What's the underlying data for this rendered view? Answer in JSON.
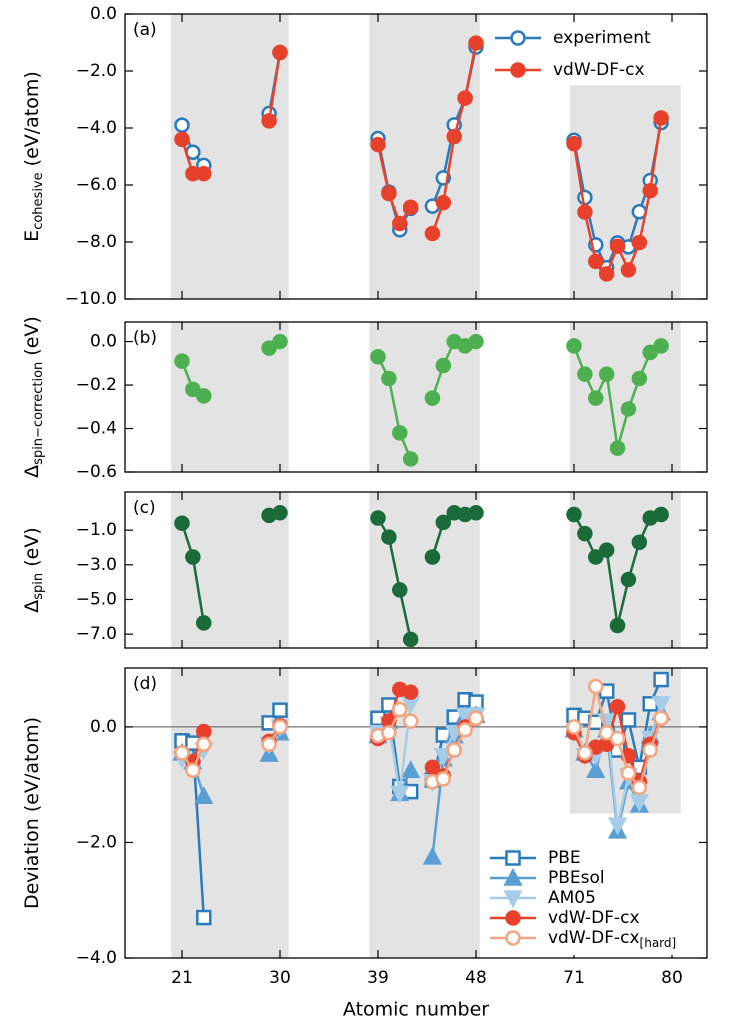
{
  "chart_data": [
    {
      "type": "line",
      "label": "(a)",
      "ylabel": {
        "main": "E",
        "sub": "cohesive",
        "unit": " (eV/atom)"
      },
      "x": [
        21,
        22,
        23,
        29,
        30,
        39,
        40,
        41,
        42,
        44,
        45,
        46,
        47,
        48,
        71,
        72,
        73,
        74,
        75,
        76,
        77,
        78,
        79
      ],
      "series": [
        {
          "name": "experiment",
          "color": "#2b7bba",
          "marker": "circle-open",
          "values": [
            -3.9,
            -4.85,
            -5.31,
            -3.49,
            -1.35,
            -4.37,
            -6.25,
            -7.57,
            -6.82,
            -6.74,
            -5.75,
            -3.89,
            -2.95,
            -1.16,
            -4.43,
            -6.44,
            -8.1,
            -8.9,
            -8.03,
            -8.17,
            -6.94,
            -5.84,
            -3.81
          ]
        },
        {
          "name": "vdW-DF-cx",
          "color": "#e8412b",
          "marker": "circle",
          "values": [
            -4.4,
            -5.6,
            -5.6,
            -3.75,
            -1.35,
            -4.58,
            -6.3,
            -7.35,
            -6.78,
            -7.7,
            -6.62,
            -4.3,
            -2.95,
            -1.02,
            -4.55,
            -6.95,
            -8.68,
            -9.12,
            -8.15,
            -8.98,
            -8.02,
            -6.2,
            -3.65
          ]
        }
      ],
      "xlim": [
        15.8,
        83.2
      ],
      "xticks": [
        21,
        30,
        39,
        48,
        71,
        80
      ],
      "ylim": [
        -10,
        0
      ],
      "yticks": [
        {
          "value": 0,
          "label": "0.0"
        },
        {
          "value": -2,
          "label": "−2.0"
        },
        {
          "value": -4,
          "label": "−4.0"
        },
        {
          "value": -6,
          "label": "−6.0"
        },
        {
          "value": -8,
          "label": "−8.0"
        },
        {
          "value": -10,
          "label": "−10.0"
        }
      ],
      "bands": [
        {
          "x": [
            20,
            30.8
          ]
        },
        {
          "x": [
            38.2,
            48.9
          ]
        },
        {
          "x": [
            70,
            80.8
          ],
          "y": [
            -10,
            -2.5
          ]
        }
      ],
      "legend": "upper right"
    },
    {
      "type": "line",
      "label": "(b)",
      "ylabel": {
        "main": "Δ",
        "sub": "spin−correction",
        "unit": " (eV)"
      },
      "x": [
        21,
        22,
        23,
        29,
        30,
        39,
        40,
        41,
        42,
        44,
        45,
        46,
        47,
        48,
        71,
        72,
        73,
        74,
        75,
        76,
        77,
        78,
        79
      ],
      "series": [
        {
          "color": "#4caf50",
          "marker": "circle",
          "values": [
            -0.09,
            -0.22,
            -0.25,
            -0.03,
            0.0,
            -0.07,
            -0.17,
            -0.42,
            -0.54,
            -0.26,
            -0.11,
            0.0,
            -0.02,
            0.0,
            -0.02,
            -0.15,
            -0.26,
            -0.15,
            -0.49,
            -0.31,
            -0.17,
            -0.05,
            -0.02
          ]
        }
      ],
      "xlim": [
        15.8,
        83.2
      ],
      "xticks": [
        21,
        30,
        39,
        48,
        71,
        80
      ],
      "ylim": [
        -0.6,
        0.09
      ],
      "yticks": [
        {
          "value": 0,
          "label": "0.0"
        },
        {
          "value": -0.2,
          "label": "−0.2"
        },
        {
          "value": -0.4,
          "label": "−0.4"
        },
        {
          "value": -0.6,
          "label": "−0.6"
        }
      ],
      "bands": [
        {
          "x": [
            20,
            30.8
          ]
        },
        {
          "x": [
            38.2,
            48.9
          ]
        },
        {
          "x": [
            70,
            80.8
          ]
        }
      ]
    },
    {
      "type": "line",
      "label": "(c)",
      "ylabel": {
        "main": "Δ",
        "sub": "spin",
        "unit": " (eV)"
      },
      "x": [
        21,
        22,
        23,
        29,
        30,
        39,
        40,
        41,
        42,
        44,
        45,
        46,
        47,
        48,
        71,
        72,
        73,
        74,
        75,
        76,
        77,
        78,
        79
      ],
      "series": [
        {
          "color": "#1b6b3a",
          "marker": "circle",
          "values": [
            -0.6,
            -2.55,
            -6.35,
            -0.15,
            0.0,
            -0.3,
            -1.4,
            -4.45,
            -7.3,
            -2.55,
            -0.55,
            0.0,
            -0.1,
            0.0,
            -0.1,
            -1.2,
            -2.55,
            -2.15,
            -6.5,
            -3.85,
            -1.7,
            -0.3,
            -0.1
          ]
        }
      ],
      "xlim": [
        15.8,
        83.2
      ],
      "xticks": [
        21,
        30,
        39,
        48,
        71,
        80
      ],
      "ylim": [
        -7.8,
        1.2
      ],
      "yticks": [
        {
          "value": -1,
          "label": "−1.0"
        },
        {
          "value": -3,
          "label": "−3.0"
        },
        {
          "value": -5,
          "label": "−5.0"
        },
        {
          "value": -7,
          "label": "−7.0"
        }
      ],
      "bands": [
        {
          "x": [
            20,
            30.8
          ]
        },
        {
          "x": [
            38.2,
            48.9
          ]
        },
        {
          "x": [
            70,
            80.8
          ]
        }
      ]
    },
    {
      "type": "line",
      "label": "(d)",
      "ylabel": {
        "main": "Deviation (eV/atom)"
      },
      "xlabel": "Atomic number",
      "x": [
        21,
        22,
        23,
        29,
        30,
        39,
        40,
        41,
        42,
        44,
        45,
        46,
        47,
        48,
        71,
        72,
        73,
        74,
        75,
        76,
        77,
        78,
        79
      ],
      "series": [
        {
          "name": "PBE",
          "color": "#2b7bba",
          "marker": "square-open",
          "values": [
            -0.24,
            -0.28,
            -3.3,
            0.07,
            0.29,
            0.15,
            0.38,
            -1.03,
            -1.12,
            -0.92,
            -0.14,
            0.17,
            0.47,
            0.43,
            0.2,
            0.15,
            0.08,
            0.62,
            -0.4,
            0.12,
            -0.7,
            0.4,
            0.82
          ]
        },
        {
          "name": "PBEsol",
          "color": "#5a9fd4",
          "marker": "triangle-up",
          "values": [
            -0.45,
            -0.6,
            -1.2,
            -0.47,
            -0.1,
            -0.15,
            0.1,
            -1.15,
            -0.75,
            -2.25,
            -0.55,
            -0.15,
            0.2,
            0.2,
            -0.05,
            -0.45,
            -0.75,
            -0.05,
            -1.8,
            -0.95,
            -1.35,
            -0.15,
            0.25
          ]
        },
        {
          "name": "AM05",
          "color": "#a6cde8",
          "marker": "triangle-down",
          "values": [
            -0.55,
            -0.7,
            -0.4,
            -0.3,
            0.0,
            -0.1,
            0.05,
            -1.15,
            0.4,
            -0.95,
            -0.5,
            -0.1,
            0.2,
            0.2,
            -0.1,
            -0.5,
            -0.5,
            0.1,
            -1.7,
            -0.85,
            -1.3,
            -0.2,
            0.4
          ]
        },
        {
          "name": "vdW-DF-cx",
          "color": "#e8412b",
          "marker": "circle",
          "values": [
            -0.45,
            -0.6,
            -0.08,
            -0.25,
            0.02,
            -0.2,
            0.1,
            0.65,
            0.6,
            -0.7,
            -0.85,
            -0.4,
            0.0,
            0.15,
            -0.1,
            -0.5,
            -0.35,
            -0.3,
            0.35,
            -0.5,
            -0.95,
            -0.3,
            0.15
          ]
        },
        {
          "name": "vdW-DF-cx",
          "name_sub": "[hard]",
          "color": "#f4a582",
          "marker": "circle-open",
          "values": [
            -0.45,
            -0.75,
            -0.3,
            -0.3,
            0.0,
            -0.15,
            -0.1,
            0.3,
            0.1,
            -0.95,
            -0.9,
            -0.4,
            -0.05,
            0.15,
            0.0,
            -0.45,
            0.7,
            -0.1,
            -0.2,
            -0.8,
            -1.05,
            -0.4,
            0.15
          ]
        }
      ],
      "xlim": [
        15.8,
        83.2
      ],
      "xticks": [
        21,
        30,
        39,
        48,
        71,
        80
      ],
      "ylim": [
        -4,
        1.02
      ],
      "yticks": [
        {
          "value": 0,
          "label": "0.0"
        },
        {
          "value": -2,
          "label": "−2.0"
        },
        {
          "value": -4,
          "label": "−4.0"
        }
      ],
      "hline": 0,
      "bands": [
        {
          "x": [
            20,
            30.8
          ]
        },
        {
          "x": [
            38.2,
            48.9
          ]
        },
        {
          "x": [
            70,
            80.8
          ],
          "y": [
            -1.5,
            1.02
          ]
        }
      ],
      "legend": "lower right"
    }
  ]
}
